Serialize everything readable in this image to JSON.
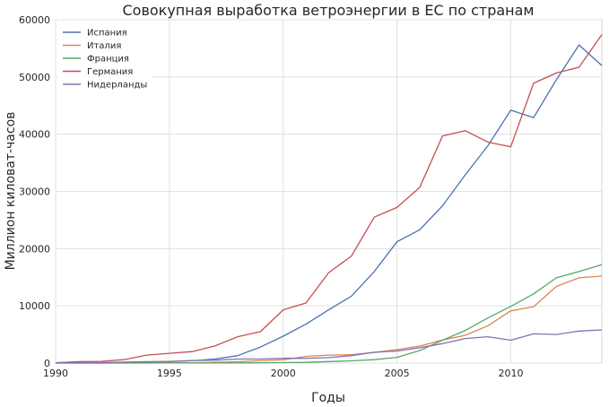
{
  "chart_data": {
    "type": "line",
    "title": "Совокупная выработка ветроэнергии в ЕС по странам",
    "xlabel": "Годы",
    "ylabel": "Миллион киловат-часов",
    "xlim": [
      1990,
      2014
    ],
    "ylim": [
      0,
      60000
    ],
    "x_ticks": [
      1990,
      1995,
      2000,
      2005,
      2010
    ],
    "y_ticks": [
      0,
      10000,
      20000,
      30000,
      40000,
      50000,
      60000
    ],
    "grid": true,
    "legend_position": "top-left",
    "x": [
      1990,
      1991,
      1992,
      1993,
      1994,
      1995,
      1996,
      1997,
      1998,
      1999,
      2000,
      2001,
      2002,
      2003,
      2004,
      2005,
      2006,
      2007,
      2008,
      2009,
      2010,
      2011,
      2012,
      2013,
      2014
    ],
    "series": [
      {
        "name": "Испания",
        "color": "#4c72b0",
        "values": [
          14,
          20,
          30,
          100,
          150,
          250,
          400,
          700,
          1300,
          2800,
          4700,
          6800,
          9300,
          11700,
          16000,
          21200,
          23300,
          27500,
          32900,
          38000,
          44200,
          42900,
          49500,
          55600,
          52000
        ]
      },
      {
        "name": "Италия",
        "color": "#dd8452",
        "values": [
          1,
          2,
          5,
          10,
          20,
          30,
          50,
          120,
          230,
          400,
          560,
          1180,
          1400,
          1460,
          1850,
          2350,
          2970,
          4030,
          4860,
          6540,
          9130,
          9860,
          13400,
          14900,
          15200
        ]
      },
      {
        "name": "Франция",
        "color": "#55a868",
        "values": [
          0,
          1,
          2,
          3,
          5,
          10,
          15,
          20,
          30,
          40,
          80,
          130,
          270,
          390,
          600,
          1000,
          2200,
          4000,
          5700,
          7900,
          9900,
          12100,
          14900,
          16000,
          17200
        ]
      },
      {
        "name": "Германия",
        "color": "#c44e52",
        "values": [
          70,
          250,
          300,
          600,
          1400,
          1700,
          2000,
          3000,
          4600,
          5500,
          9300,
          10500,
          15800,
          18700,
          25500,
          27200,
          30700,
          39700,
          40600,
          38600,
          37800,
          48900,
          50700,
          51700,
          57400
        ]
      },
      {
        "name": "Нидерланды",
        "color": "#8172b3",
        "values": [
          50,
          60,
          100,
          170,
          250,
          300,
          450,
          500,
          700,
          700,
          830,
          830,
          950,
          1300,
          1900,
          2100,
          2700,
          3400,
          4300,
          4600,
          4000,
          5100,
          5000,
          5600,
          5800
        ]
      }
    ]
  }
}
